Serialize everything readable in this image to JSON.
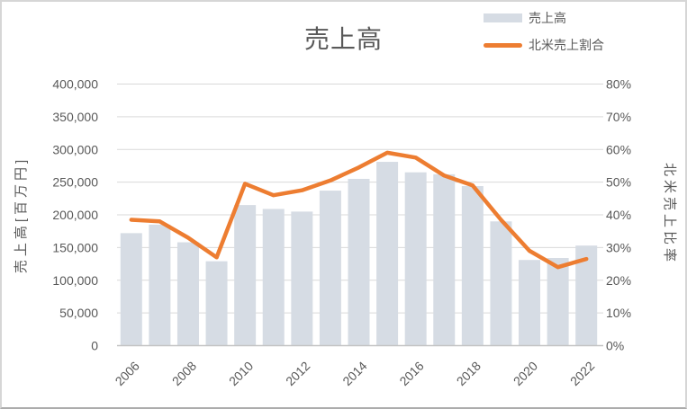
{
  "styles": {
    "background": "#FFFFFF",
    "frame_border": "#D6D6D6",
    "text_color": "#595959",
    "gridline_color": "#D9D9D9",
    "axis_line_color": "#C3C3C3",
    "bar_color": "#D6DCE4",
    "line_color": "#ED7D31"
  },
  "chart_data": {
    "type": "combo",
    "title": "売上高",
    "legend_position": "top-right",
    "grid": true,
    "categories": [
      "2006",
      "2007",
      "2008",
      "2009",
      "2010",
      "2011",
      "2012",
      "2013",
      "2014",
      "2015",
      "2016",
      "2017",
      "2018",
      "2019",
      "2020",
      "2021",
      "2022"
    ],
    "x_axis": {
      "tick_labels": [
        "2006",
        "2008",
        "2010",
        "2012",
        "2014",
        "2016",
        "2018",
        "2020",
        "2022"
      ],
      "tick_every": 2,
      "label_rotation_deg": -45
    },
    "left_axis": {
      "title": "売上高[百万円]",
      "min": 0,
      "max": 400000,
      "step": 50000,
      "tick_labels": [
        "0",
        "50,000",
        "100,000",
        "150,000",
        "200,000",
        "250,000",
        "300,000",
        "350,000",
        "400,000"
      ]
    },
    "right_axis": {
      "title": "北米売上比率",
      "min": 0,
      "max": 0.8,
      "step": 0.1,
      "tick_labels": [
        "0%",
        "10%",
        "20%",
        "30%",
        "40%",
        "50%",
        "60%",
        "70%",
        "80%"
      ]
    },
    "series": [
      {
        "name": "売上高",
        "type": "bar",
        "axis": "left",
        "color": "#D6DCE4",
        "values": [
          172000,
          185000,
          158000,
          129000,
          215000,
          209000,
          205000,
          237000,
          255000,
          281000,
          265000,
          262000,
          244000,
          190000,
          131000,
          134000,
          153000
        ]
      },
      {
        "name": "北米売上割合",
        "type": "line",
        "axis": "right",
        "color": "#ED7D31",
        "values": [
          0.385,
          0.38,
          0.33,
          0.27,
          0.495,
          0.46,
          0.475,
          0.505,
          0.545,
          0.59,
          0.575,
          0.52,
          0.49,
          0.385,
          0.29,
          0.24,
          0.265
        ]
      }
    ]
  }
}
